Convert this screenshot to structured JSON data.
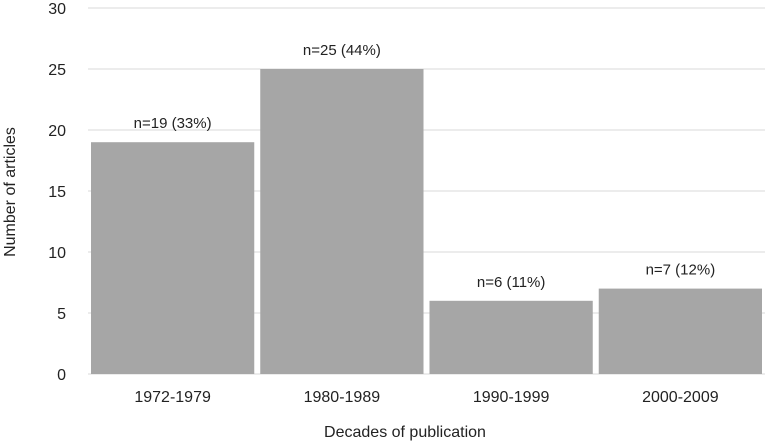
{
  "chart_data": {
    "type": "bar",
    "categories": [
      "1972-1979",
      "1980-1989",
      "1990-1999",
      "2000-2009"
    ],
    "values": [
      19,
      25,
      6,
      7
    ],
    "data_labels": [
      "n=19 (33%)",
      "n=25 (44%)",
      "n=6 (11%)",
      "n=7 (12%)"
    ],
    "title": "",
    "xlabel": "Decades of publication",
    "ylabel": "Number of articles",
    "ylim": [
      0,
      30
    ],
    "yticks": [
      0,
      5,
      10,
      15,
      20,
      25,
      30
    ],
    "grid": true,
    "legend": "none",
    "bar_color": "#a6a6a6"
  }
}
